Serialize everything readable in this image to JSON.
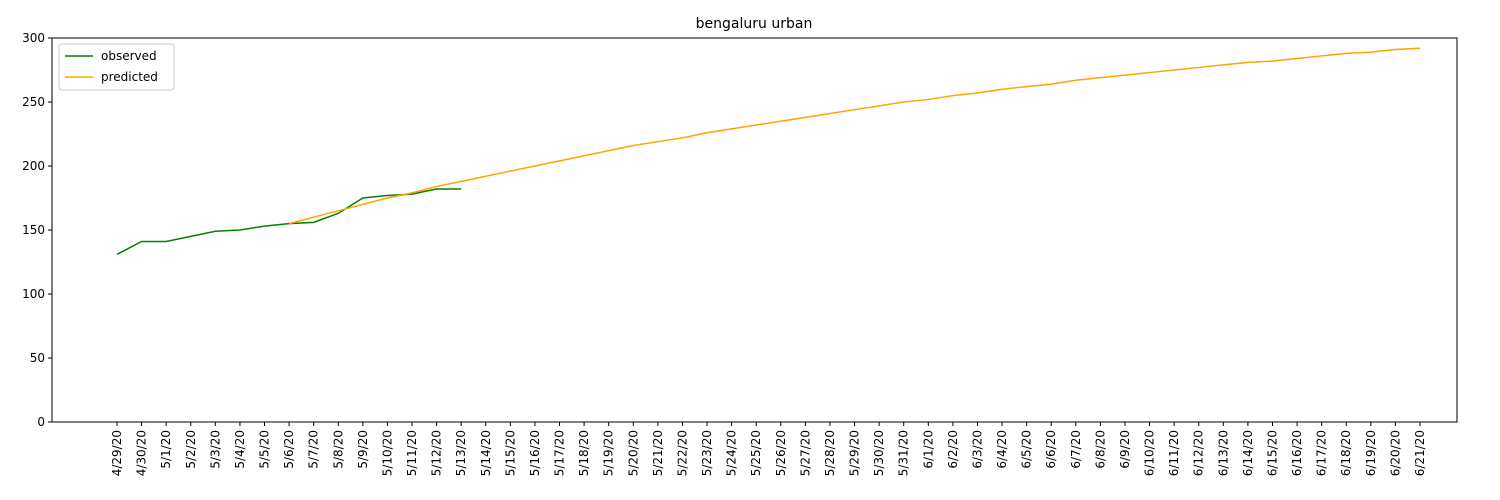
{
  "chart_data": {
    "type": "line",
    "title": "bengaluru urban",
    "categories": [
      "4/29/20",
      "4/30/20",
      "5/1/20",
      "5/2/20",
      "5/3/20",
      "5/4/20",
      "5/5/20",
      "5/6/20",
      "5/7/20",
      "5/8/20",
      "5/9/20",
      "5/10/20",
      "5/11/20",
      "5/12/20",
      "5/13/20",
      "5/14/20",
      "5/15/20",
      "5/16/20",
      "5/17/20",
      "5/18/20",
      "5/19/20",
      "5/20/20",
      "5/21/20",
      "5/22/20",
      "5/23/20",
      "5/24/20",
      "5/25/20",
      "5/26/20",
      "5/27/20",
      "5/28/20",
      "5/29/20",
      "5/30/20",
      "5/31/20",
      "6/1/20",
      "6/2/20",
      "6/3/20",
      "6/4/20",
      "6/5/20",
      "6/6/20",
      "6/7/20",
      "6/8/20",
      "6/9/20",
      "6/10/20",
      "6/11/20",
      "6/12/20",
      "6/13/20",
      "6/14/20",
      "6/15/20",
      "6/16/20",
      "6/17/20",
      "6/18/20",
      "6/19/20",
      "6/20/20",
      "6/21/20"
    ],
    "series": [
      {
        "name": "observed",
        "color": "green",
        "values": [
          131,
          141,
          141,
          145,
          149,
          150,
          153,
          155,
          156,
          163,
          175,
          177,
          178,
          182,
          182,
          null,
          null,
          null,
          null,
          null,
          null,
          null,
          null,
          null,
          null,
          null,
          null,
          null,
          null,
          null,
          null,
          null,
          null,
          null,
          null,
          null,
          null,
          null,
          null,
          null,
          null,
          null,
          null,
          null,
          null,
          null,
          null,
          null,
          null,
          null,
          null,
          null,
          null,
          null
        ]
      },
      {
        "name": "predicted",
        "color": "orange",
        "values": [
          null,
          null,
          null,
          null,
          null,
          null,
          null,
          155,
          160,
          165,
          170,
          175,
          179,
          184,
          188,
          192,
          196,
          200,
          204,
          208,
          212,
          216,
          219,
          222,
          226,
          229,
          232,
          235,
          238,
          241,
          244,
          247,
          250,
          252,
          255,
          257,
          260,
          262,
          264,
          267,
          269,
          271,
          273,
          275,
          277,
          279,
          281,
          282,
          284,
          286,
          288,
          289,
          291,
          292
        ]
      }
    ],
    "ylim": [
      0,
      300
    ],
    "yticks": [
      0,
      50,
      100,
      150,
      200,
      250,
      300
    ],
    "legend": "upper left"
  }
}
